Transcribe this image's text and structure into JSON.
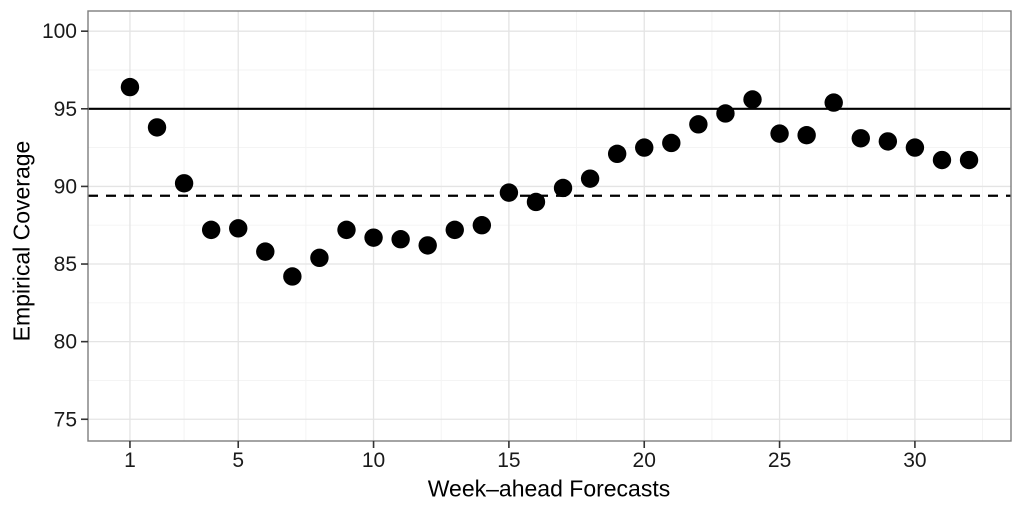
{
  "chart_data": {
    "type": "scatter",
    "title": "",
    "xlabel": "Week–ahead Forecasts",
    "ylabel": "Empirical Coverage",
    "x": [
      1,
      2,
      3,
      4,
      5,
      6,
      7,
      8,
      9,
      10,
      11,
      12,
      13,
      14,
      15,
      16,
      17,
      18,
      19,
      20,
      21,
      22,
      23,
      24,
      25,
      26,
      27,
      28,
      29,
      30,
      31,
      32
    ],
    "y": [
      96.4,
      93.8,
      90.2,
      87.2,
      87.3,
      85.8,
      84.2,
      85.4,
      87.2,
      86.7,
      86.6,
      86.2,
      87.2,
      87.5,
      89.6,
      89.0,
      89.9,
      90.5,
      92.1,
      92.5,
      92.8,
      94.0,
      94.7,
      95.6,
      93.4,
      93.3,
      95.4,
      93.1,
      92.9,
      92.5,
      91.7,
      91.7
    ],
    "x_ticks": [
      1,
      5,
      10,
      15,
      20,
      25,
      30
    ],
    "y_ticks": [
      75,
      80,
      85,
      90,
      95,
      100
    ],
    "x_minor": [
      3,
      7.5,
      12.5,
      17.5,
      22.5,
      27.5,
      32.5
    ],
    "y_minor": [
      77.5,
      82.5,
      87.5,
      92.5,
      97.5
    ],
    "xlim": [
      -0.55,
      33.55
    ],
    "ylim": [
      73.6,
      101.3
    ],
    "reference_lines": [
      {
        "value": 95.0,
        "style": "solid"
      },
      {
        "value": 89.4,
        "style": "dashed"
      }
    ],
    "legend": "none",
    "grid": "on",
    "colors": {
      "point": "#000000",
      "reference_line": "#000000",
      "grid_major": "#e4e4e4",
      "grid_minor": "#f3f3f3",
      "panel_border": "#7d7d7d",
      "tick_mark": "#333333",
      "tick_label": "#1a1a1a",
      "background": "#ffffff"
    }
  }
}
